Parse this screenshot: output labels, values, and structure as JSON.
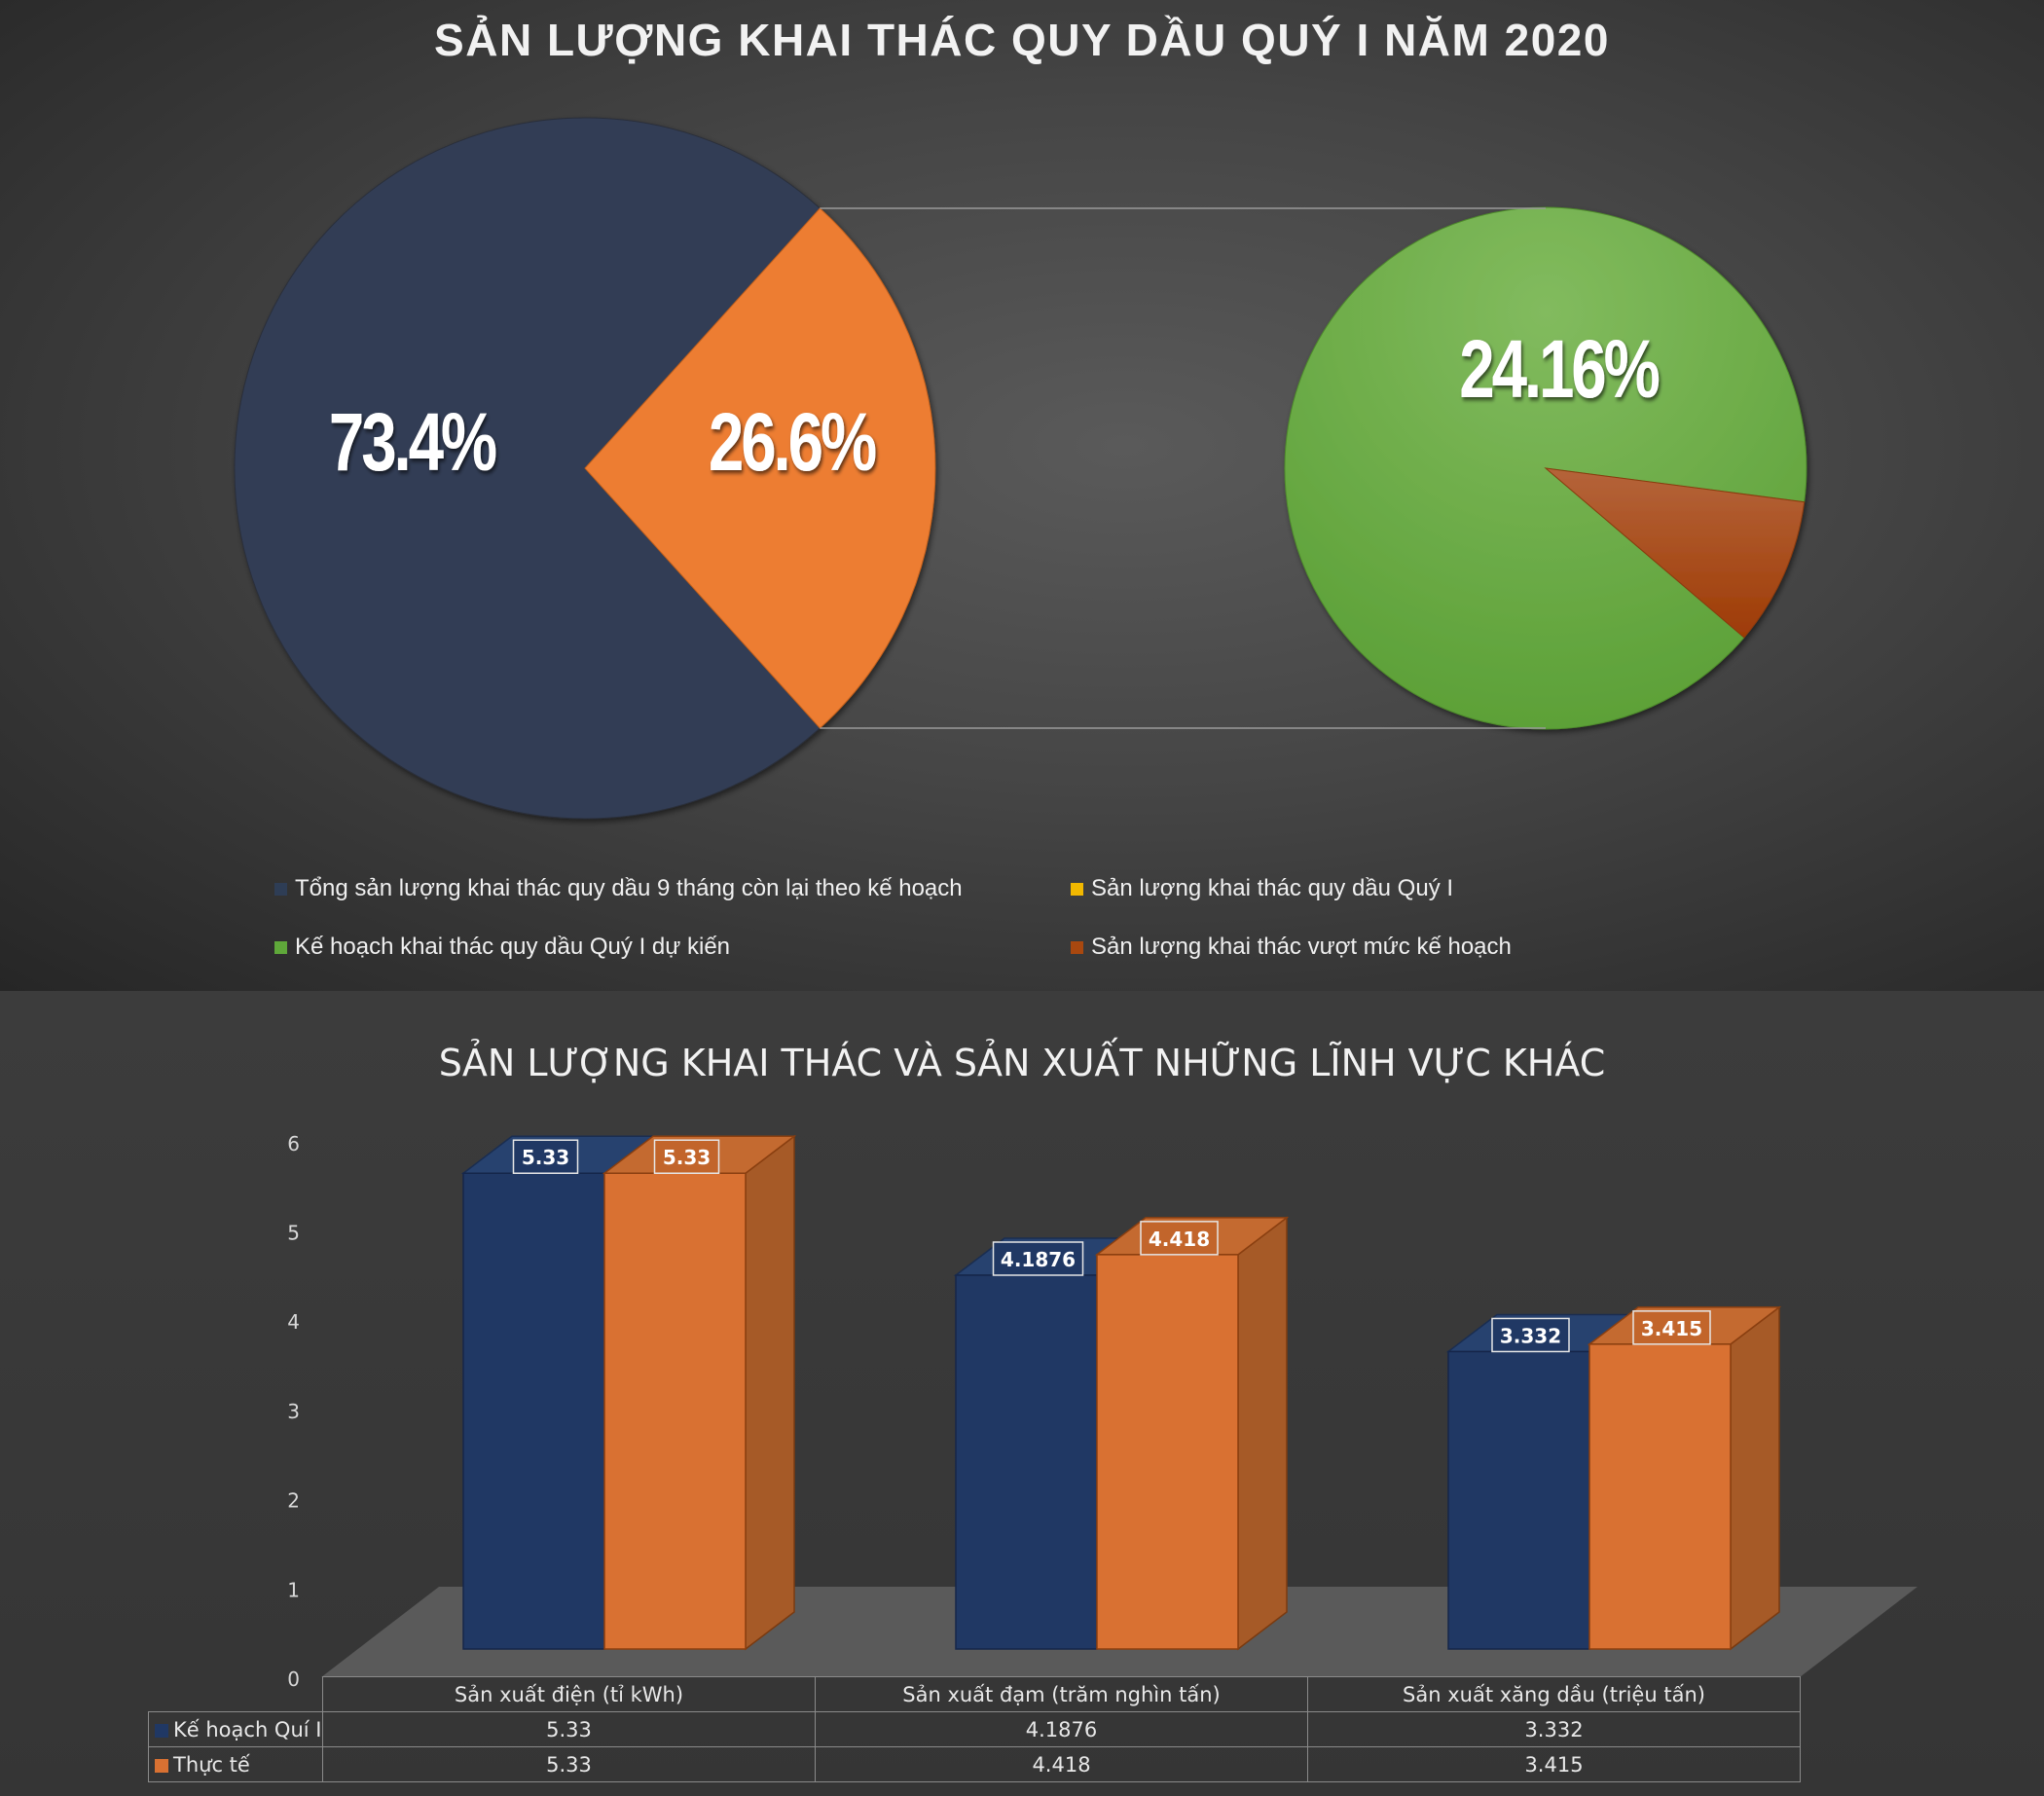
{
  "pie_chart": {
    "title": "SẢN LƯỢNG KHAI THÁC QUY DẦU QUÝ I NĂM 2020",
    "main_labels": [
      "73.4%",
      "26.6%"
    ],
    "secondary_label": "24.16%",
    "legend": [
      {
        "label": "Tổng sản lượng khai thác quy dầu 9 tháng còn lại theo kế hoạch",
        "color": "#2e3d55"
      },
      {
        "label": "Sản lượng khai thác quy dầu Quý I",
        "color": "#f2b800"
      },
      {
        "label": "Kế hoạch khai thác quy dầu Quý I dự kiến",
        "color": "#5fa83a"
      },
      {
        "label": "Sản lượng khai thác vượt mức kế hoạch",
        "color": "#a9480f"
      }
    ]
  },
  "bar_chart": {
    "title": "SẢN LƯỢNG KHAI THÁC VÀ SẢN XUẤT NHỮNG LĨNH VỰC KHÁC",
    "row_labels": [
      "Kế hoạch Quí I",
      "Thực tế"
    ]
  },
  "chart_data": [
    {
      "type": "pie",
      "title": "SẢN LƯỢNG KHAI THÁC QUY DẦU QUÝ I NĂM 2020",
      "main_pie": [
        {
          "name": "Tổng sản lượng khai thác quy dầu 9 tháng còn lại theo kế hoạch",
          "value": 73.4,
          "label": "73.4%",
          "color": "#323e55"
        },
        {
          "name": "Sản lượng khai thác quy dầu Quý I",
          "value": 26.6,
          "label": "26.6%",
          "color": "#ed7d31"
        }
      ],
      "secondary_pie": [
        {
          "name": "Kế hoạch khai thác quy dầu Quý I dự kiến",
          "value": 24.16,
          "label": "24.16%",
          "color": "#6bb04a"
        },
        {
          "name": "Sản lượng khai thác vượt mức kế hoạch",
          "value": 2.44,
          "color": "#a94a12"
        }
      ]
    },
    {
      "type": "bar",
      "title": "SẢN LƯỢNG KHAI THÁC VÀ SẢN XUẤT NHỮNG LĨNH VỰC KHÁC",
      "categories": [
        "Sản xuất điện (tỉ kWh)",
        "Sản xuất đạm (trăm nghìn tấn)",
        "Sản xuất xăng dầu (triệu tấn)"
      ],
      "series": [
        {
          "name": "Kế hoạch Quí I",
          "values": [
            5.33,
            4.1876,
            3.332
          ],
          "labels": [
            "5.33",
            "4.1876",
            "3.332"
          ],
          "color": "#203864"
        },
        {
          "name": "Thực tế",
          "values": [
            5.33,
            4.418,
            3.415
          ],
          "labels": [
            "5.33",
            "4.418",
            "3.415"
          ],
          "color": "#d97132"
        }
      ],
      "ylim": [
        0,
        6
      ],
      "yticks": [
        "0",
        "1",
        "2",
        "3",
        "4",
        "5",
        "6"
      ],
      "legend": "data table"
    }
  ]
}
